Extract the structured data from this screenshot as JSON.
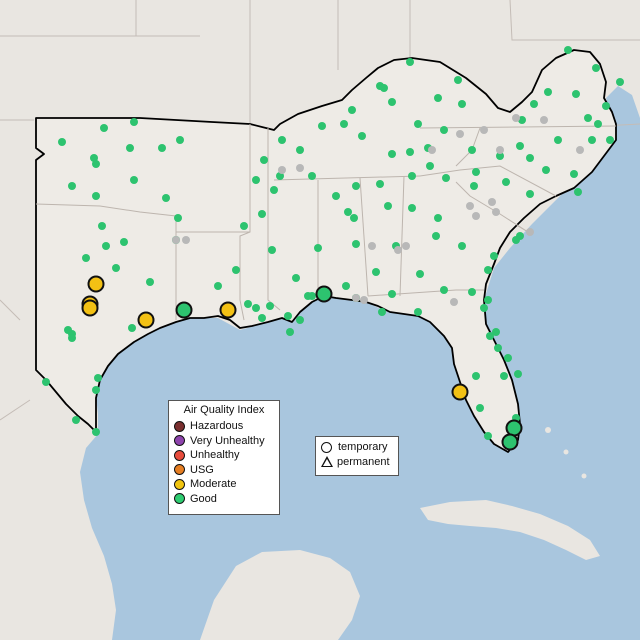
{
  "colors": {
    "ocean": "#a9c6de",
    "land": "#e9e6e1",
    "region_fill": "#eeebe6",
    "border": "#c4bcb6",
    "region_outline": "#000000",
    "good": "#2dc36f",
    "moderate": "#f3c114",
    "inactive": "#b8b8b8"
  },
  "legend": {
    "title": "Air Quality Index",
    "categories": [
      {
        "label": "Hazardous",
        "color": "#7a2f2f"
      },
      {
        "label": "Very Unhealthy",
        "color": "#8e44ad"
      },
      {
        "label": "Unhealthy",
        "color": "#e74c3c"
      },
      {
        "label": "USG",
        "color": "#e67e22"
      },
      {
        "label": "Moderate",
        "color": "#f1c40f"
      },
      {
        "label": "Good",
        "color": "#2ecc71"
      }
    ]
  },
  "shape_legend": {
    "temporary": "temporary",
    "permanent": "permanent"
  }
}
